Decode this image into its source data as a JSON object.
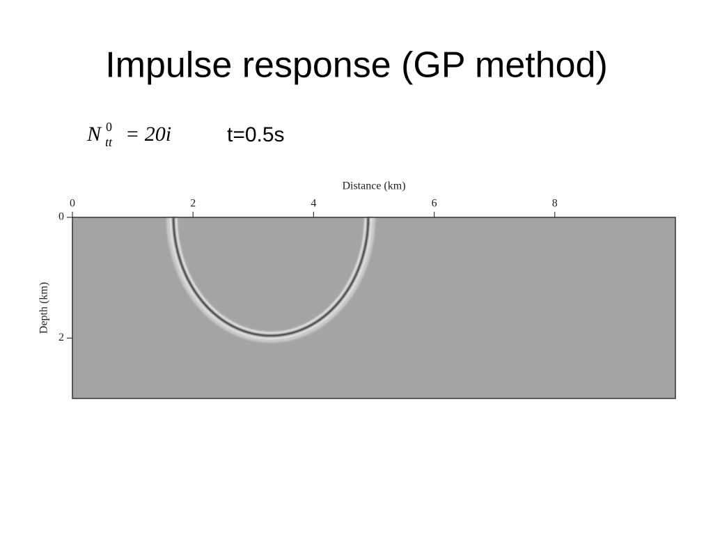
{
  "title": "Impulse response (GP method)",
  "equation": {
    "base": "N",
    "sup": "0",
    "sub": "tt",
    "rhs": "= 20i"
  },
  "time_label": "t=0.5s",
  "figure": {
    "x_label": "Distance (km)",
    "y_label": "Depth (km)",
    "xlim": [
      0,
      10
    ],
    "xticks": [
      0,
      2,
      4,
      6,
      8
    ],
    "ylim": [
      0,
      3
    ],
    "yticks": [
      0,
      2
    ]
  }
}
